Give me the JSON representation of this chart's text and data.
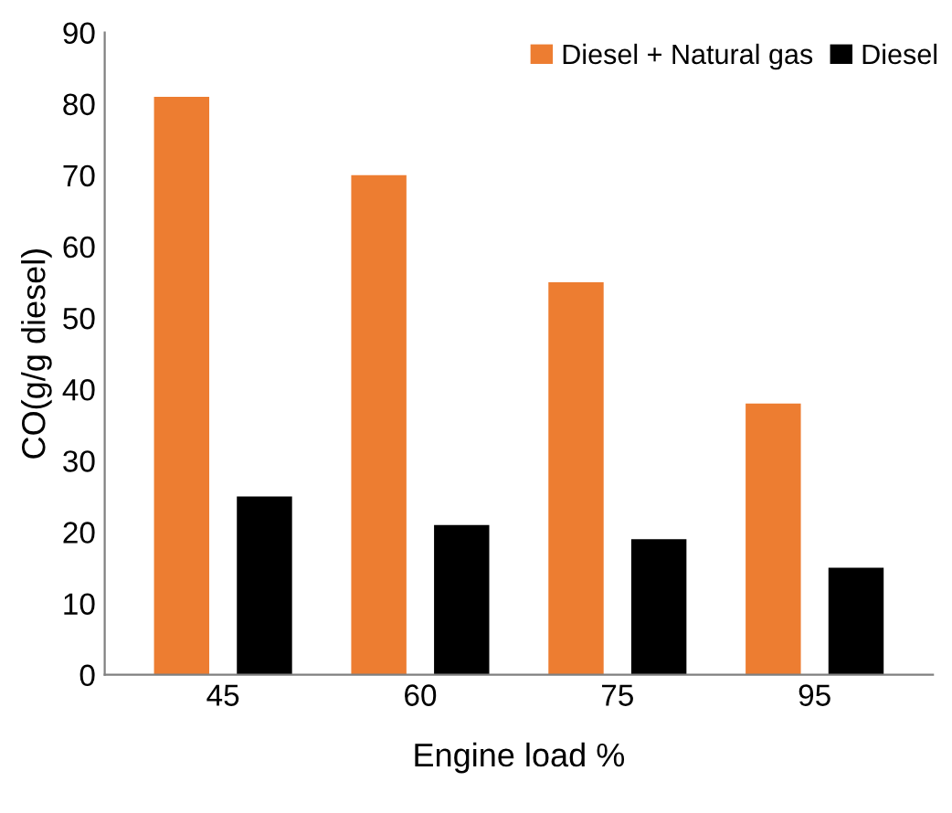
{
  "chart_data": {
    "type": "bar",
    "xlabel": "Engine load %",
    "ylabel": "CO(g/g diesel)",
    "categories": [
      "45",
      "60",
      "75",
      "95"
    ],
    "series": [
      {
        "name": "Diesel + Natural gas",
        "color": "#ed7d31",
        "values": [
          81,
          70,
          55,
          38
        ]
      },
      {
        "name": "Diesel",
        "color": "#000000",
        "values": [
          25,
          21,
          19,
          15
        ]
      }
    ],
    "ylim": [
      0,
      90
    ],
    "yticks": [
      0,
      10,
      20,
      30,
      40,
      50,
      60,
      70,
      80,
      90
    ],
    "grid": false,
    "legend": "top right"
  }
}
